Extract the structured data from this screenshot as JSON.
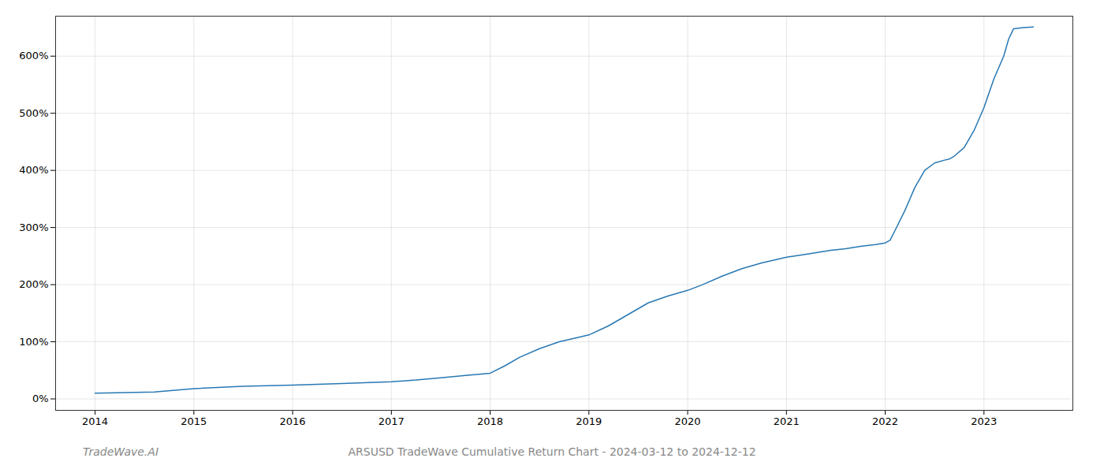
{
  "chart_data": {
    "type": "line",
    "title": "ARSUSD TradeWave Cumulative Return Chart - 2024-03-12 to 2024-12-12",
    "annotations": [
      "TradeWave.AI"
    ],
    "color": "#2878b4",
    "grid": true,
    "xlim": [
      2013.6,
      2023.9
    ],
    "xticks": [
      2014,
      2015,
      2016,
      2017,
      2018,
      2019,
      2020,
      2021,
      2022,
      2023
    ],
    "ylim": [
      -20,
      670
    ],
    "yticks": [
      {
        "value": 0,
        "label": "0%"
      },
      {
        "value": 100,
        "label": "100%"
      },
      {
        "value": 200,
        "label": "200%"
      },
      {
        "value": 300,
        "label": "300%"
      },
      {
        "value": 400,
        "label": "400%"
      },
      {
        "value": 500,
        "label": "500%"
      },
      {
        "value": 600,
        "label": "600%"
      }
    ],
    "x": [
      2014.0,
      2014.3,
      2014.6,
      2015.0,
      2015.5,
      2016.0,
      2016.5,
      2017.0,
      2017.25,
      2017.5,
      2017.75,
      2018.0,
      2018.15,
      2018.3,
      2018.5,
      2018.7,
      2018.9,
      2019.0,
      2019.2,
      2019.4,
      2019.6,
      2019.8,
      2020.0,
      2020.15,
      2020.35,
      2020.55,
      2020.75,
      2020.95,
      2021.0,
      2021.15,
      2021.3,
      2021.45,
      2021.6,
      2021.75,
      2021.9,
      2022.0,
      2022.05,
      2022.1,
      2022.2,
      2022.3,
      2022.4,
      2022.5,
      2022.6,
      2022.65,
      2022.7,
      2022.8,
      2022.9,
      2023.0,
      2023.1,
      2023.2,
      2023.25,
      2023.3,
      2023.4,
      2023.5
    ],
    "values": [
      10,
      11,
      12,
      18,
      22,
      24,
      27,
      30,
      33,
      37,
      41,
      45,
      58,
      73,
      88,
      100,
      108,
      112,
      128,
      148,
      168,
      180,
      190,
      200,
      215,
      228,
      238,
      246,
      248,
      252,
      256,
      260,
      263,
      267,
      270,
      273,
      278,
      295,
      330,
      370,
      400,
      413,
      418,
      420,
      425,
      440,
      470,
      510,
      560,
      600,
      630,
      648,
      650,
      651
    ]
  }
}
